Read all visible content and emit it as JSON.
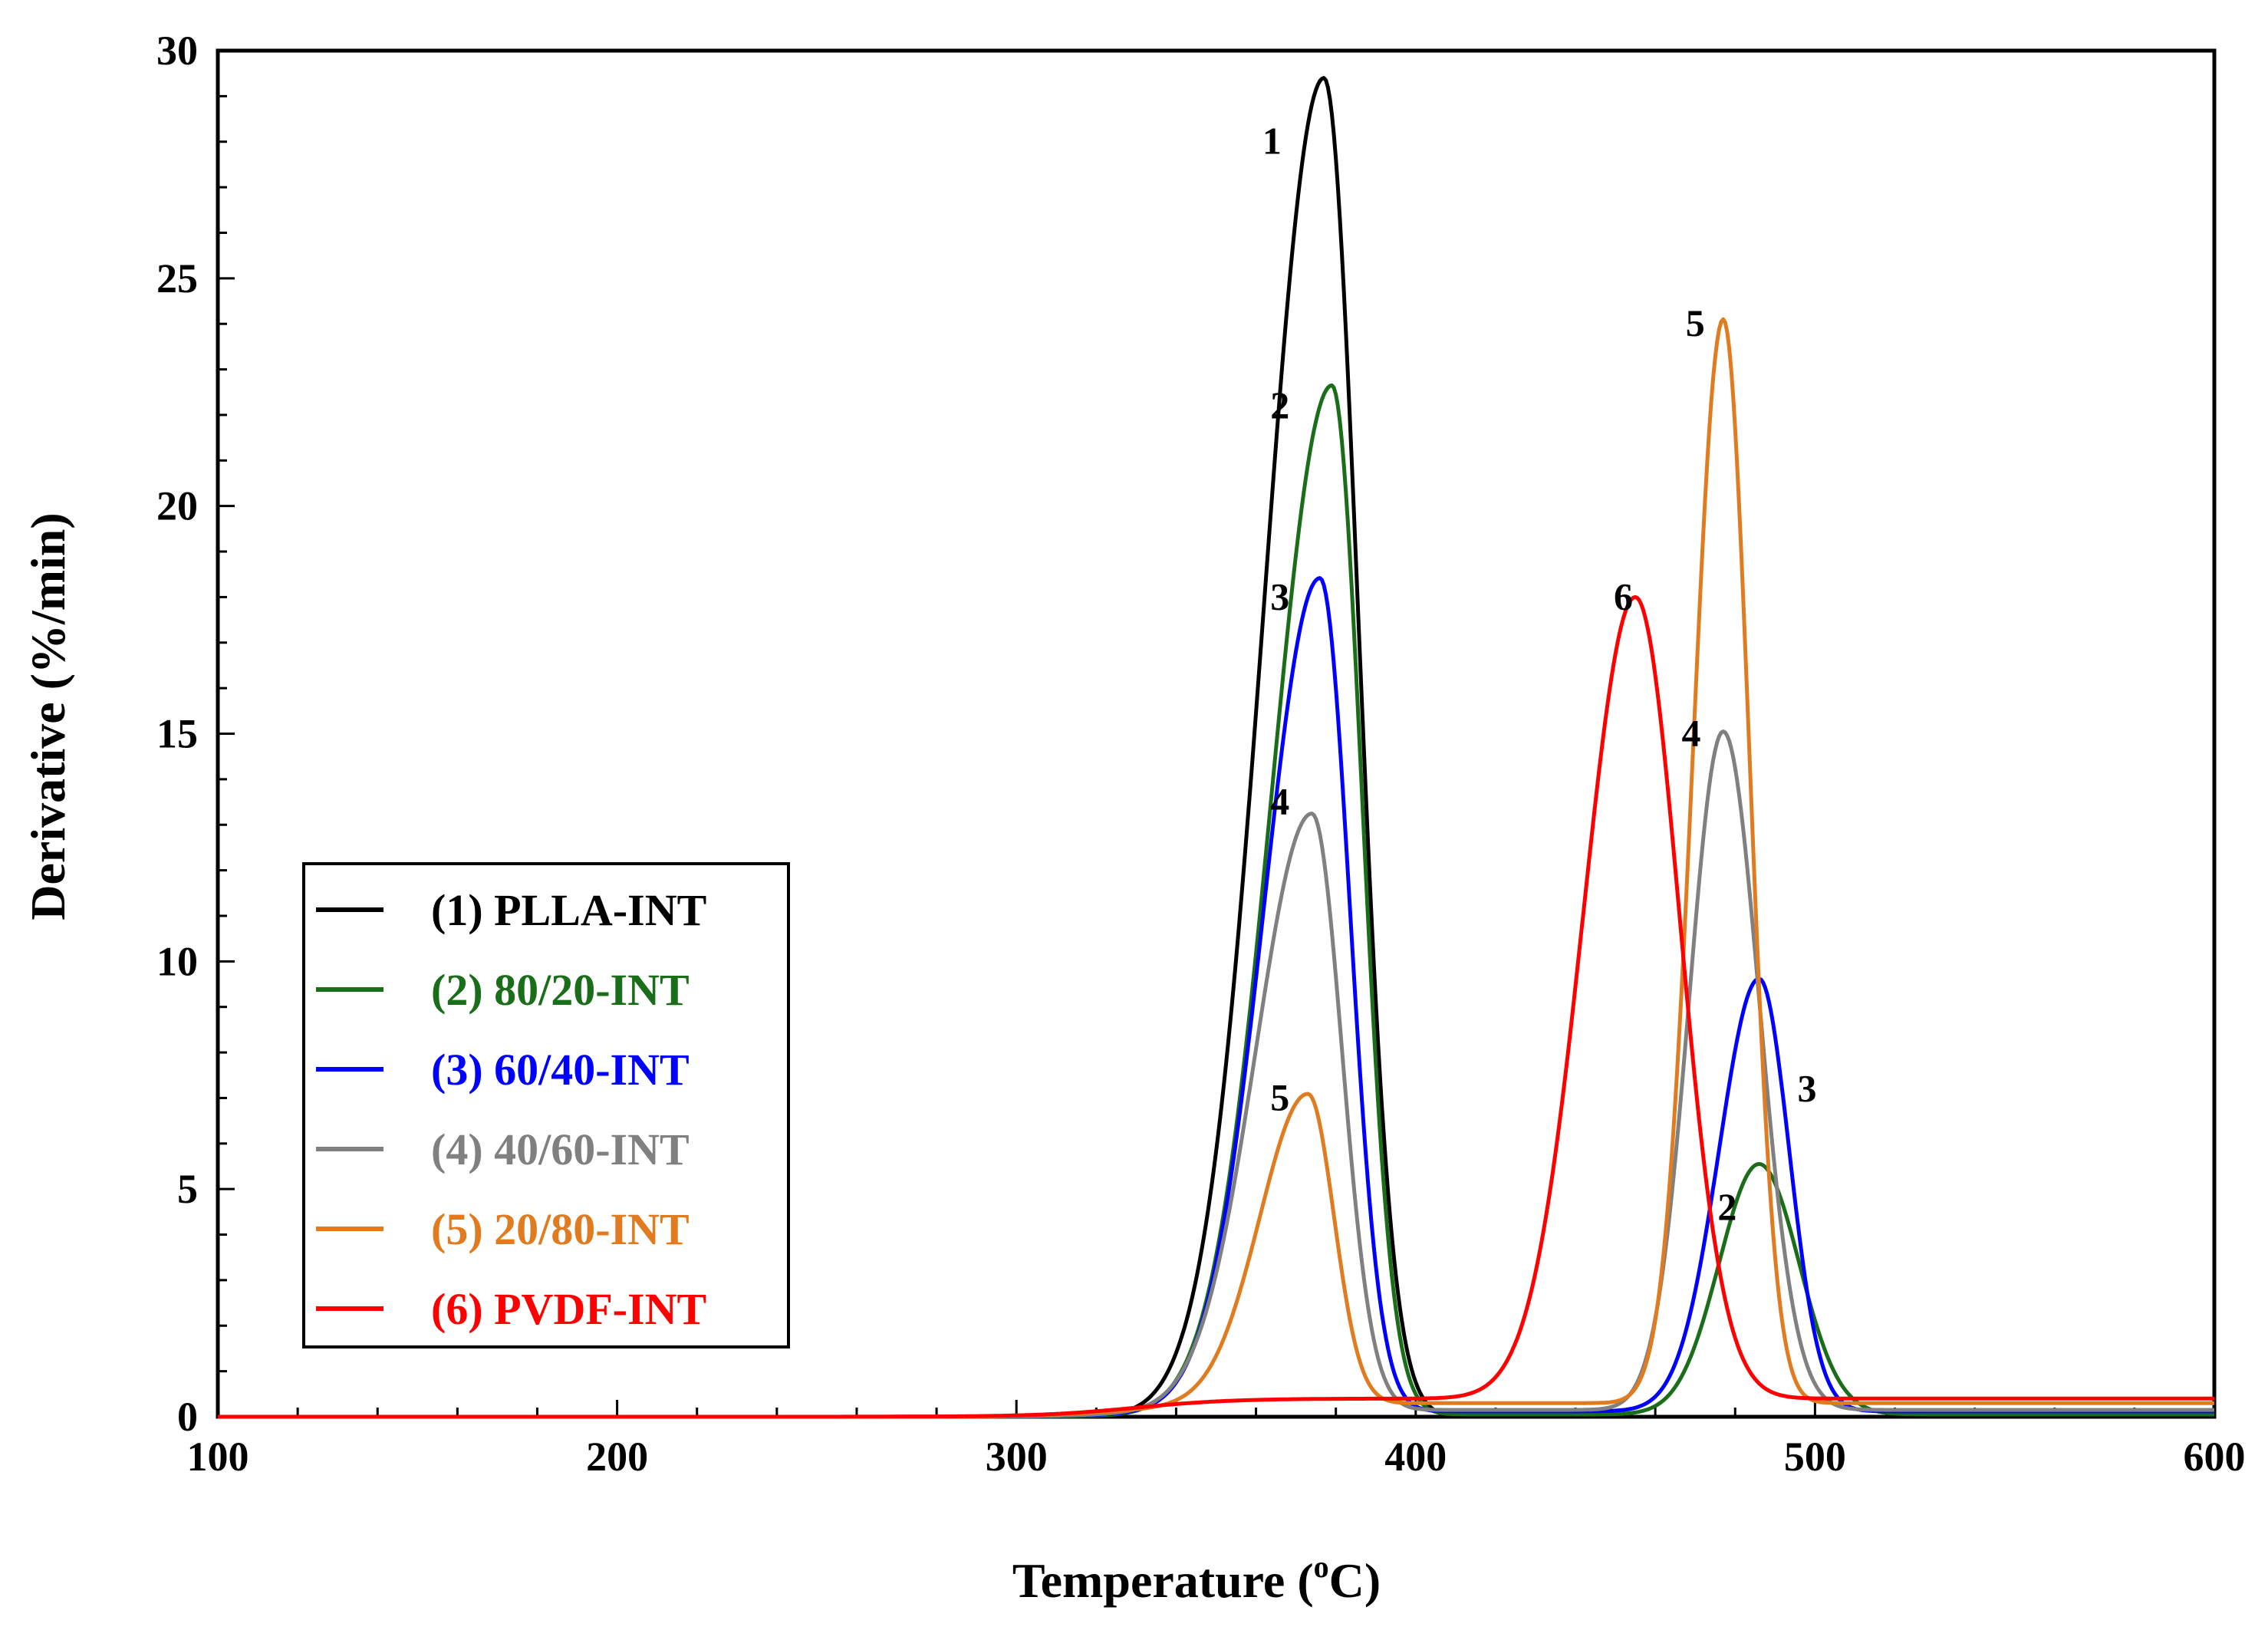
{
  "chart_data": {
    "type": "line",
    "title": "",
    "xlabel": "Temperature (",
    "xlabel_sup": "o",
    "xlabel_unit": "C)",
    "ylabel": "Derivative (%/min)",
    "xlim": [
      100,
      600
    ],
    "ylim": [
      0,
      30
    ],
    "x_ticks": [
      "100",
      "200",
      "300",
      "400",
      "500",
      "600"
    ],
    "y_ticks": [
      "0",
      "5",
      "10",
      "15",
      "20",
      "25",
      "30"
    ],
    "grid": false,
    "legend_position": "lower-left",
    "series": [
      {
        "name": "(1) PLLA-INT",
        "color": "#000000",
        "peaks": [
          {
            "center": 377,
            "height": 29.4,
            "width_left": 15,
            "width_right": 8.5
          }
        ],
        "baseline": 0.0
      },
      {
        "name": "(2) 80/20-INT",
        "color": "#1a6e1a",
        "peaks": [
          {
            "center": 379,
            "height": 22.6,
            "width_left": 15,
            "width_right": 7.5
          },
          {
            "center": 486,
            "height": 5.5,
            "width_left": 10,
            "width_right": 10
          }
        ],
        "baseline": 0.05
      },
      {
        "name": "(3) 60/40-INT",
        "color": "#0000ff",
        "peaks": [
          {
            "center": 376,
            "height": 18.3,
            "width_left": 14,
            "width_right": 7.5
          },
          {
            "center": 486,
            "height": 9.5,
            "width_left": 10,
            "width_right": 7.5
          }
        ],
        "baseline": 0.12
      },
      {
        "name": "(4) 40/60-INT",
        "color": "#808080",
        "peaks": [
          {
            "center": 374,
            "height": 13.1,
            "width_left": 14,
            "width_right": 7.5
          },
          {
            "center": 477,
            "height": 14.9,
            "width_left": 8.5,
            "width_right": 9
          }
        ],
        "baseline": 0.15
      },
      {
        "name": "(5) 20/80-INT",
        "color": "#e07b20",
        "peaks": [
          {
            "center": 373,
            "height": 6.8,
            "width_left": 12,
            "width_right": 6.5
          },
          {
            "center": 477,
            "height": 23.8,
            "width_left": 7.5,
            "width_right": 6.5
          }
        ],
        "baseline": 0.3
      },
      {
        "name": "(6) PVDF-INT",
        "color": "#ff0000",
        "peaks": [
          {
            "center": 455,
            "height": 17.6,
            "width_left": 13,
            "width_right": 11
          }
        ],
        "baseline": 0.4
      }
    ],
    "annotations": [
      {
        "text": "1",
        "x": 364,
        "y": 28.0
      },
      {
        "text": "2",
        "x": 366,
        "y": 22.2
      },
      {
        "text": "3",
        "x": 366,
        "y": 18.0
      },
      {
        "text": "4",
        "x": 366,
        "y": 13.5
      },
      {
        "text": "5",
        "x": 366,
        "y": 7.0
      },
      {
        "text": "5",
        "x": 470,
        "y": 24.0
      },
      {
        "text": "6",
        "x": 452,
        "y": 18.0
      },
      {
        "text": "4",
        "x": 469,
        "y": 15.0
      },
      {
        "text": "3",
        "x": 498,
        "y": 7.2
      },
      {
        "text": "2",
        "x": 478,
        "y": 4.6
      }
    ]
  }
}
